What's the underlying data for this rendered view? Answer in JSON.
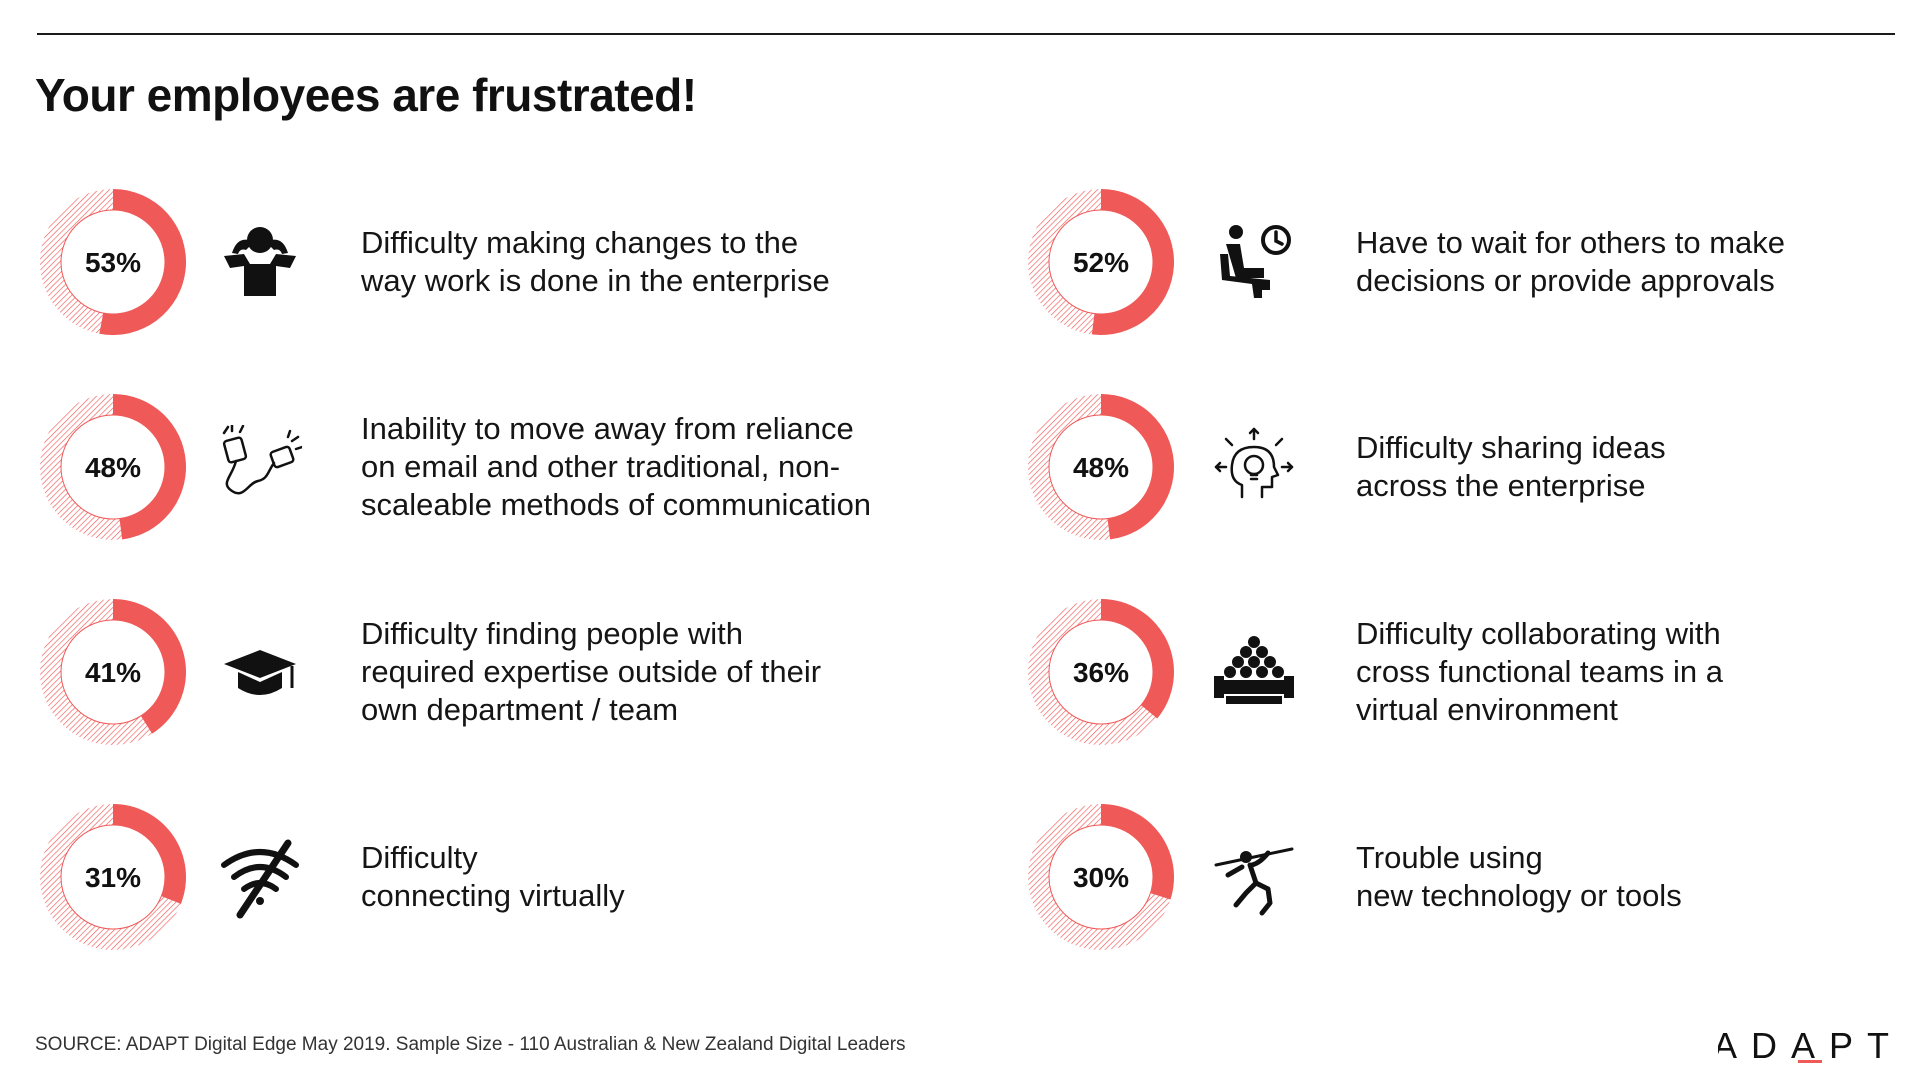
{
  "header": {
    "title": "Your employees are frustrated!"
  },
  "colors": {
    "accent": "#ef5a58",
    "hatch": "#ef5a58",
    "inner_ring": "#ffffff",
    "text": "#111111"
  },
  "chart_data": {
    "type": "pie",
    "variant": "donut-grid",
    "title": "Your employees are frustrated!",
    "layout": "2 columns x 4 rows",
    "items": [
      {
        "value": 53,
        "label_text": "53%",
        "label": "Difficulty making changes to the\nway work is done in the enterprise",
        "icon": "person-hands-behind-head-icon"
      },
      {
        "value": 52,
        "label_text": "52%",
        "label": "Have to wait for others to make\ndecisions or provide approvals",
        "icon": "person-waiting-clock-icon"
      },
      {
        "value": 48,
        "label_text": "48%",
        "label": "Inability to move away from reliance\non email and other traditional, non-\nscaleable methods of communication",
        "icon": "tin-can-phone-icon"
      },
      {
        "value": 48,
        "label_text": "48%",
        "label": "Difficulty sharing ideas\nacross the enterprise",
        "icon": "head-lightbulb-idea-icon"
      },
      {
        "value": 41,
        "label_text": "41%",
        "label": "Difficulty finding people with\nrequired expertise outside of their\nown department / team",
        "icon": "graduation-cap-icon"
      },
      {
        "value": 36,
        "label_text": "36%",
        "label": "Difficulty collaborating with\ncross functional teams in a\nvirtual environment",
        "icon": "group-of-people-icon"
      },
      {
        "value": 31,
        "label_text": "31%",
        "label": "Difficulty\nconnecting virtually",
        "icon": "wifi-off-icon"
      },
      {
        "value": 30,
        "label_text": "30%",
        "label": "Trouble using\nnew technology or tools",
        "icon": "javelin-thrower-icon"
      }
    ]
  },
  "footer": {
    "source": "SOURCE: ADAPT Digital Edge May 2019. Sample Size - 110 Australian & New Zealand Digital Leaders",
    "logo_text": "ADAPT"
  }
}
